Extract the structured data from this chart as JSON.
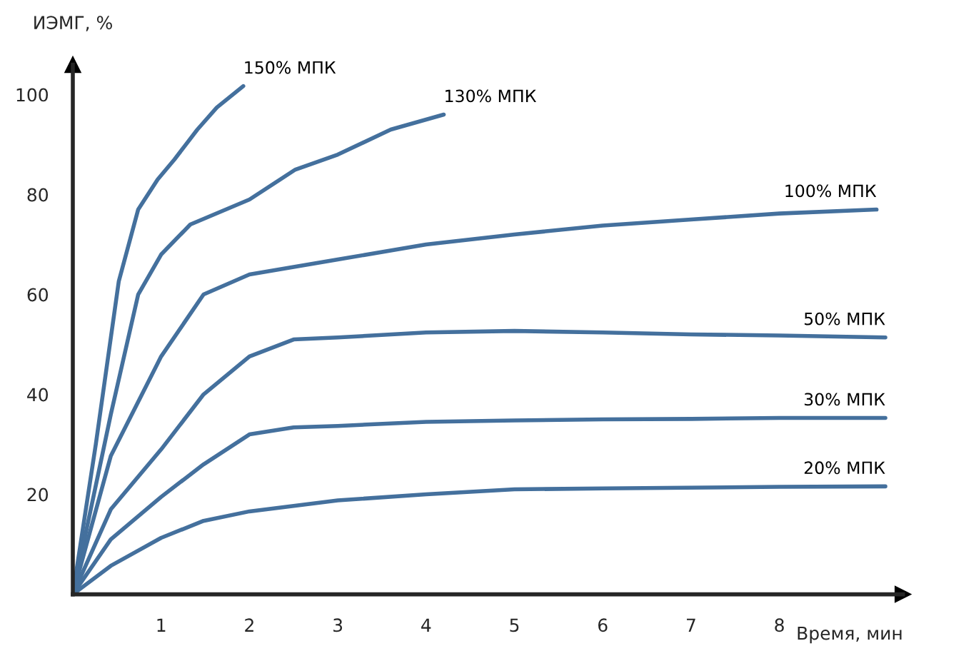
{
  "chart_data": {
    "type": "line",
    "xlabel": "Время, мин",
    "ylabel": "ИЭМГ, %",
    "xlim": [
      0,
      9.4
    ],
    "ylim": [
      0,
      106
    ],
    "xticks": [
      1,
      2,
      3,
      4,
      5,
      6,
      7,
      8
    ],
    "yticks": [
      20,
      40,
      60,
      80,
      100
    ],
    "grid": false,
    "legend": false,
    "marker": "none",
    "line_style": "solid",
    "series": [
      {
        "name": "150% МПК",
        "color": "#44709d",
        "x": [
          0,
          0.26,
          0.52,
          0.74,
          0.96,
          1.15,
          1.41,
          1.63,
          1.93
        ],
        "values": [
          0,
          30,
          62.6,
          77,
          83,
          87,
          93,
          97.4,
          101.7
        ]
      },
      {
        "name": "130% МПК",
        "color": "#44709d",
        "x": [
          0,
          0.43,
          0.74,
          1.0,
          1.33,
          2.0,
          2.52,
          3.0,
          3.6,
          4.2
        ],
        "values": [
          0,
          36,
          60,
          68,
          74,
          79,
          85,
          88,
          93,
          96
        ]
      },
      {
        "name": "100% МПК",
        "color": "#44709d",
        "x": [
          0,
          0.43,
          1.0,
          1.48,
          2.0,
          3.0,
          4.0,
          5.0,
          6.0,
          7.0,
          8.0,
          9.1
        ],
        "values": [
          0,
          27.7,
          47.6,
          60,
          64,
          67,
          70,
          72,
          73.8,
          75,
          76.2,
          77
        ]
      },
      {
        "name": "50% МПК",
        "color": "#44709d",
        "x": [
          0,
          0.43,
          1.0,
          1.48,
          2.0,
          2.5,
          3.0,
          4.0,
          5.0,
          6.0,
          7.0,
          8.0,
          9.2
        ],
        "values": [
          0,
          17,
          29,
          40,
          47.6,
          51,
          51.4,
          52.4,
          52.7,
          52.4,
          52,
          51.8,
          51.4
        ]
      },
      {
        "name": "30% МПК",
        "color": "#44709d",
        "x": [
          0,
          0.43,
          1.0,
          1.48,
          2.0,
          2.5,
          3.0,
          4.0,
          5.0,
          6.0,
          7.0,
          8.0,
          9.2
        ],
        "values": [
          0,
          11,
          19.5,
          26,
          32,
          33.4,
          33.7,
          34.5,
          34.8,
          35,
          35.1,
          35.3,
          35.3
        ]
      },
      {
        "name": "20% МПК",
        "color": "#44709d",
        "x": [
          0,
          0.43,
          1.0,
          1.48,
          2.0,
          3.0,
          4.0,
          5.0,
          6.0,
          8.0,
          9.2
        ],
        "values": [
          0,
          5.7,
          11.3,
          14.7,
          16.6,
          18.8,
          20,
          21,
          21.2,
          21.5,
          21.6
        ]
      }
    ]
  }
}
